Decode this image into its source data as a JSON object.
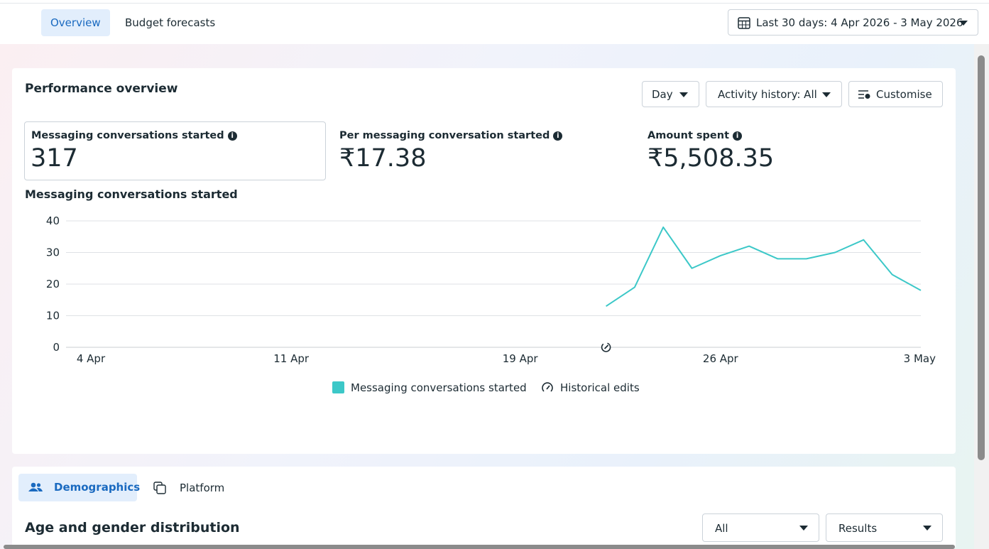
{
  "tabs": [
    "Overview",
    "Budget forecasts"
  ],
  "date_range": "Last 30 days: 4 Apr 2026 - 3 May 2026",
  "performance": {
    "title": "Performance overview",
    "controls": [
      "Day",
      "Activity history: All",
      "Customise"
    ],
    "metrics": [
      {
        "label": "Messaging conversations started",
        "value": "317"
      },
      {
        "label": "Per messaging conversation started",
        "value": "₹17.38"
      },
      {
        "label": "Amount spent",
        "value": "₹5,508.35"
      }
    ]
  },
  "chart_data": {
    "type": "line",
    "title": "Messaging conversations started",
    "categories": [
      "4 Apr",
      null,
      null,
      null,
      null,
      null,
      null,
      "11 Apr",
      null,
      null,
      null,
      null,
      null,
      null,
      null,
      "19 Apr",
      null,
      null,
      null,
      null,
      null,
      null,
      "26 Apr",
      null,
      null,
      null,
      null,
      null,
      null,
      "3 May"
    ],
    "series": [
      {
        "name": "Messaging conversations started",
        "color": "#3cc8c8",
        "values": [
          null,
          null,
          null,
          null,
          null,
          null,
          null,
          null,
          null,
          null,
          null,
          null,
          null,
          null,
          null,
          null,
          null,
          null,
          13,
          19,
          38,
          25,
          29,
          32,
          28,
          28,
          30,
          34,
          23,
          18
        ]
      }
    ],
    "ylim": [
      0,
      40
    ],
    "yticks": [
      0,
      10,
      20,
      30,
      40
    ],
    "grid": true,
    "annotation": "Historical edits"
  },
  "breakdown": {
    "tabs": [
      "Demographics",
      "Platform"
    ],
    "title": "Age and gender distribution",
    "filters": [
      "All",
      "Results"
    ]
  }
}
